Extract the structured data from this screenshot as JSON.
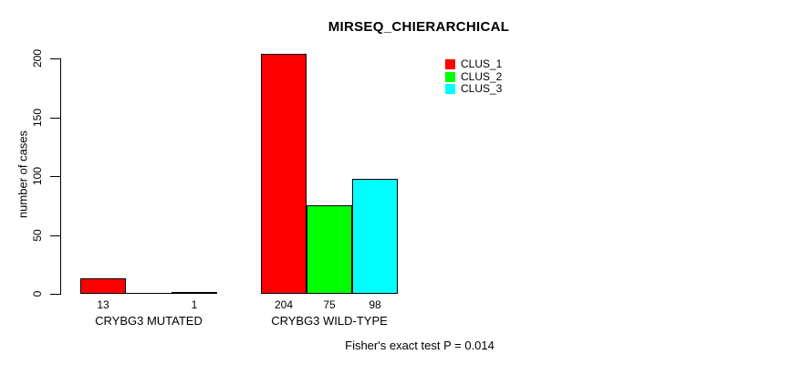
{
  "chart_data": {
    "type": "bar",
    "title": "MIRSEQ_CHIERARCHICAL",
    "ylabel": "number of cases",
    "ylim": [
      0,
      210
    ],
    "yticks": [
      0,
      50,
      100,
      150,
      200
    ],
    "grid": false,
    "categories": [
      "CRYBG3 MUTATED",
      "CRYBG3 WILD-TYPE"
    ],
    "series": [
      {
        "name": "CLUS_1",
        "color": "#ff0000",
        "values": [
          13,
          204
        ]
      },
      {
        "name": "CLUS_2",
        "color": "#00ff00",
        "values": [
          0,
          75
        ]
      },
      {
        "name": "CLUS_3",
        "color": "#00ffff",
        "values": [
          1,
          98
        ]
      }
    ],
    "bar_value_labels": [
      [
        "13",
        "",
        "1"
      ],
      [
        "204",
        "75",
        "98"
      ]
    ],
    "legend_position": "top-right",
    "legend_items": [
      {
        "label": "CLUS_1",
        "color": "#ff0000"
      },
      {
        "label": "CLUS_2",
        "color": "#00ff00"
      },
      {
        "label": "CLUS_3",
        "color": "#00ffff"
      }
    ],
    "annotation": "Fisher's exact test P = 0.014"
  },
  "colors": {
    "bar_border": "#000000",
    "axis": "#000000",
    "background": "#ffffff"
  }
}
